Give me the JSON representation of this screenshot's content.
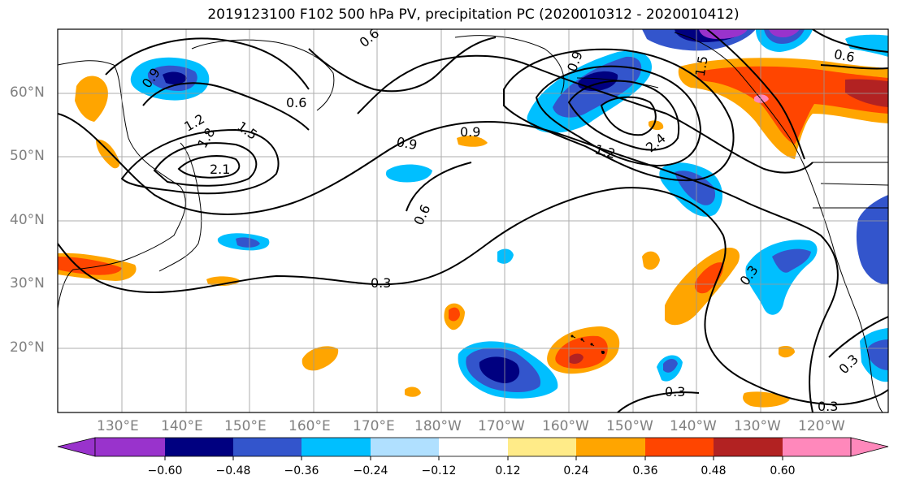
{
  "title": "2019123100 F102 500 hPa PV, precipitation PC (2020010312 - 2020010412)",
  "lat_labels": [
    "60°N",
    "50°N",
    "40°N",
    "30°N",
    "20°N"
  ],
  "lon_labels": [
    "130°E",
    "140°E",
    "150°E",
    "160°E",
    "170°E",
    "180°W",
    "170°W",
    "160°W",
    "150°W",
    "140°W",
    "130°W",
    "120°W"
  ],
  "contour_labels": [
    "0.9",
    "1.2",
    "1.8",
    "1.5",
    "2.1",
    "0.6",
    "0.9",
    "0.9",
    "1.2",
    "2.4",
    "0.6",
    "0.3",
    "0.3",
    "0.3",
    "0.3",
    "0.3",
    "0.6",
    "0.6",
    "1.5",
    "0.9"
  ],
  "colorbar": {
    "colors": [
      "#9933cc",
      "#000080",
      "#3355cc",
      "#00bfff",
      "#b0e0ff",
      "#ffffff",
      "#ffeb88",
      "#ffa500",
      "#ff4500",
      "#b22222",
      "#ff88bb"
    ],
    "tick_labels": [
      "−0.60",
      "−0.48",
      "−0.36",
      "−0.24",
      "−0.12",
      "0.12",
      "0.24",
      "0.36",
      "0.48",
      "0.60"
    ]
  },
  "colors": {
    "neg_purple": "#9933cc",
    "neg_navy": "#000080",
    "neg_blue": "#3355cc",
    "neg_sky": "#00bfff",
    "neg_light": "#b0e0ff",
    "pos_yellow": "#ffeb88",
    "pos_orange": "#ffa500",
    "pos_red": "#ff4500",
    "pos_dark": "#b22222",
    "pos_pink": "#ff88bb"
  }
}
